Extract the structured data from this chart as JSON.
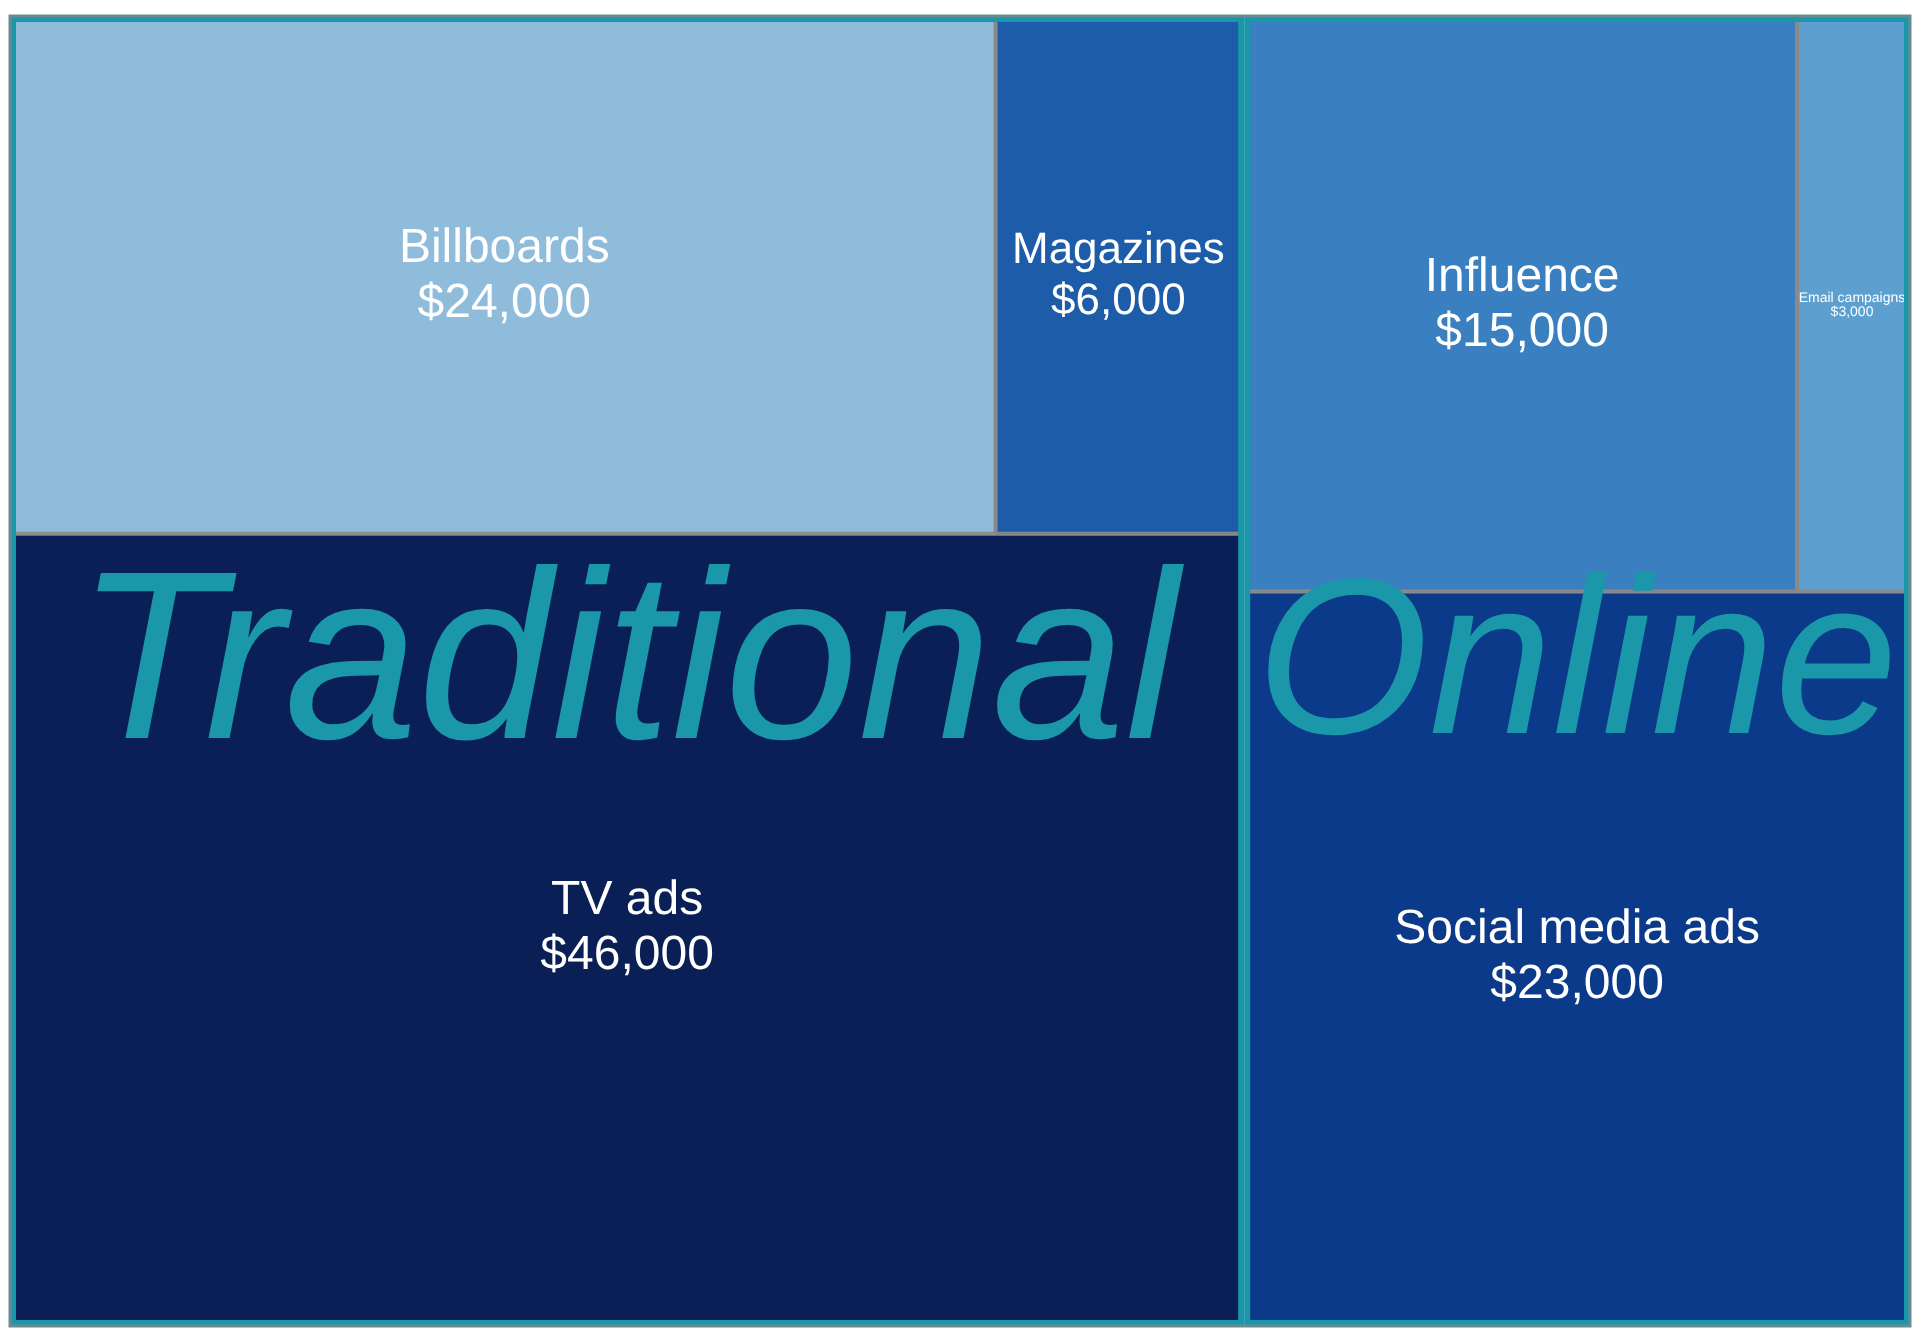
{
  "chart_data": {
    "type": "other",
    "categories": [
      "Billboards",
      "Magazines",
      "TV ads",
      "Email campaigns",
      "Influence",
      "Social media ads"
    ],
    "series": [
      {
        "values": [
          24000,
          6000,
          46000,
          null,
          null,
          null
        ],
        "value_labels": [
          "$24,000",
          "$6,000",
          "$46,000",
          null,
          null,
          null
        ],
        "colors": [
          "#8fbcdb",
          "#1c5ca8",
          "#0b1f57",
          null,
          null,
          null
        ]
      },
      {
        "values": [
          null,
          null,
          null,
          3000,
          15000,
          23000
        ],
        "value_labels": [
          null,
          null,
          null,
          "$3,000",
          "$15,000",
          "$23,000"
        ],
        "colors": [
          null,
          null,
          null,
          "#5da0cf",
          "#3a7fbf",
          "#0c3a8a"
        ]
      }
    ],
    "annotations": [
      "Traditional",
      "Online"
    ]
  }
}
